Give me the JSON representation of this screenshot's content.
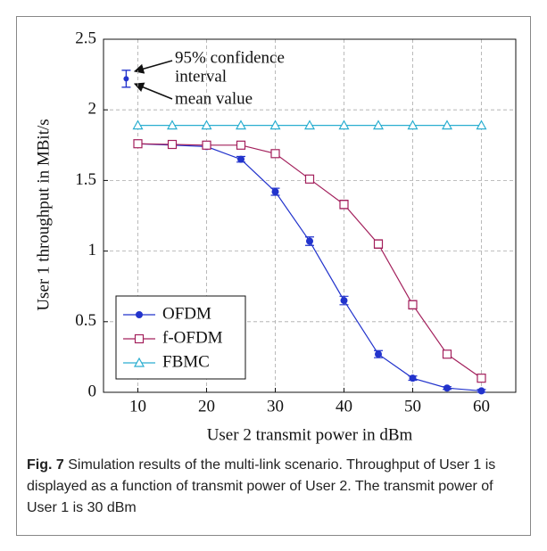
{
  "chart_data": {
    "type": "line",
    "xlabel": "User 2 transmit power in dBm",
    "ylabel": "User 1 throughput in MBit/s",
    "x": [
      10,
      15,
      20,
      25,
      30,
      35,
      40,
      45,
      50,
      55,
      60
    ],
    "xlim": [
      5,
      65
    ],
    "xticks": [
      10,
      20,
      30,
      40,
      50,
      60
    ],
    "ylim": [
      0,
      2.5
    ],
    "yticks": [
      0,
      0.5,
      1,
      1.5,
      2,
      2.5
    ],
    "grid": true,
    "legend": "lower left",
    "series": [
      {
        "name": "OFDM",
        "color": "#2233cc",
        "marker": "circle",
        "values": [
          1.76,
          1.75,
          1.74,
          1.65,
          1.42,
          1.07,
          0.65,
          0.27,
          0.1,
          0.03,
          0.01
        ],
        "errors": [
          0.015,
          0.015,
          0.015,
          0.02,
          0.025,
          0.03,
          0.03,
          0.025,
          0.015,
          0.01,
          0.01
        ]
      },
      {
        "name": "f-OFDM",
        "color": "#a3205c",
        "marker": "square",
        "values": [
          1.76,
          1.755,
          1.75,
          1.75,
          1.69,
          1.51,
          1.33,
          1.05,
          0.62,
          0.27,
          0.1
        ],
        "errors": [
          0.015,
          0.015,
          0.015,
          0.015,
          0.025,
          0.025,
          0.03,
          0.03,
          0.03,
          0.025,
          0.02
        ]
      },
      {
        "name": "FBMC",
        "color": "#2aaed0",
        "marker": "triangle",
        "values": [
          1.89,
          1.89,
          1.89,
          1.89,
          1.89,
          1.89,
          1.89,
          1.89,
          1.89,
          1.89,
          1.89
        ]
      }
    ],
    "annotation": {
      "x": 8.3,
      "value": 2.22,
      "error": 0.06,
      "interval_text": [
        "95% confidence",
        "interval"
      ],
      "mean_text": "mean value"
    },
    "caption": {
      "label": "Fig. 7",
      "text": "Simulation results of the multi-link scenario. Throughput of User 1 is displayed as a function of transmit power of User 2. The transmit power of User 1 is 30 dBm"
    }
  }
}
